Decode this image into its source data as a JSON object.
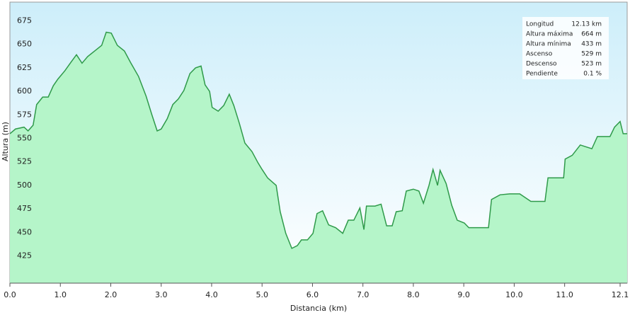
{
  "chart_data": {
    "type": "area",
    "xlabel": "Distancia  (km)",
    "ylabel": "Altura (m)",
    "x": [
      0,
      0.11,
      0.28,
      0.36,
      0.46,
      0.53,
      0.65,
      0.76,
      0.86,
      0.95,
      1.09,
      1.21,
      1.32,
      1.43,
      1.54,
      1.68,
      1.82,
      1.91,
      2.01,
      2.13,
      2.27,
      2.39,
      2.55,
      2.7,
      2.81,
      2.92,
      3.0,
      3.12,
      3.23,
      3.34,
      3.45,
      3.57,
      3.68,
      3.79,
      3.87,
      3.96,
      4.01,
      4.13,
      4.24,
      4.35,
      4.44,
      4.55,
      4.66,
      4.8,
      4.92,
      5.0,
      5.11,
      5.28,
      5.36,
      5.47,
      5.59,
      5.7,
      5.78,
      5.9,
      6.01,
      6.09,
      6.2,
      6.32,
      6.46,
      6.6,
      6.71,
      6.82,
      6.94,
      7.02,
      7.07,
      7.24,
      7.36,
      7.47,
      7.58,
      7.66,
      7.78,
      7.86,
      8.0,
      8.11,
      8.2,
      8.31,
      8.39,
      8.48,
      8.53,
      8.65,
      8.76,
      8.87,
      9.01,
      9.1,
      9.49,
      9.55,
      9.72,
      9.91,
      10.11,
      10.33,
      10.61,
      10.67,
      10.98,
      11.01,
      11.15,
      11.31,
      11.54,
      11.65,
      11.9,
      11.99,
      12.1,
      12.16,
      12.24
    ],
    "series": [
      {
        "name": "Altura",
        "color": "#2f9a4a",
        "fill": "#b5f5c9",
        "values": [
          555,
          560,
          562,
          558,
          564,
          586,
          594,
          594,
          606,
          613,
          622,
          631,
          639,
          630,
          637,
          643,
          649,
          663,
          662,
          649,
          643,
          631,
          616,
          595,
          576,
          558,
          560,
          571,
          586,
          592,
          601,
          619,
          625,
          627,
          607,
          600,
          583,
          579,
          585,
          597,
          585,
          566,
          545,
          536,
          524,
          517,
          508,
          500,
          472,
          449,
          433,
          436,
          442,
          442,
          449,
          470,
          473,
          458,
          455,
          449,
          463,
          463,
          476,
          453,
          478,
          478,
          480,
          457,
          457,
          472,
          473,
          494,
          496,
          494,
          481,
          500,
          517,
          500,
          516,
          502,
          479,
          463,
          460,
          455,
          455,
          485,
          490,
          491,
          491,
          483,
          483,
          508,
          508,
          528,
          532,
          543,
          539,
          552,
          552,
          562,
          568,
          555,
          555
        ]
      }
    ],
    "xlim": [
      0,
      12.24
    ],
    "ylim": [
      396,
      695
    ],
    "xticks": [
      {
        "value": 0,
        "label": "0.0"
      },
      {
        "value": 1,
        "label": "1.0"
      },
      {
        "value": 2,
        "label": "2.0"
      },
      {
        "value": 3,
        "label": "3.0"
      },
      {
        "value": 4,
        "label": "4.0"
      },
      {
        "value": 5,
        "label": "5.0"
      },
      {
        "value": 6,
        "label": "6.0"
      },
      {
        "value": 7,
        "label": "7.0"
      },
      {
        "value": 8,
        "label": "8.0"
      },
      {
        "value": 9,
        "label": "9.0"
      },
      {
        "value": 10,
        "label": "10.0"
      },
      {
        "value": 11,
        "label": "11.0"
      },
      12.1
    ],
    "yticks": [
      425,
      450,
      475,
      500,
      525,
      550,
      575,
      600,
      625,
      650,
      675
    ],
    "stats": [
      {
        "label": "Longitud",
        "value": "12.13 km"
      },
      {
        "label": "Altura máxima",
        "value": "664 m"
      },
      {
        "label": "Altura mínima",
        "value": "433 m"
      },
      {
        "label": "Ascenso",
        "value": "529 m"
      },
      {
        "label": "Descenso",
        "value": "523 m"
      },
      {
        "label": "Pendiente",
        "value": "0.1 %"
      }
    ]
  }
}
